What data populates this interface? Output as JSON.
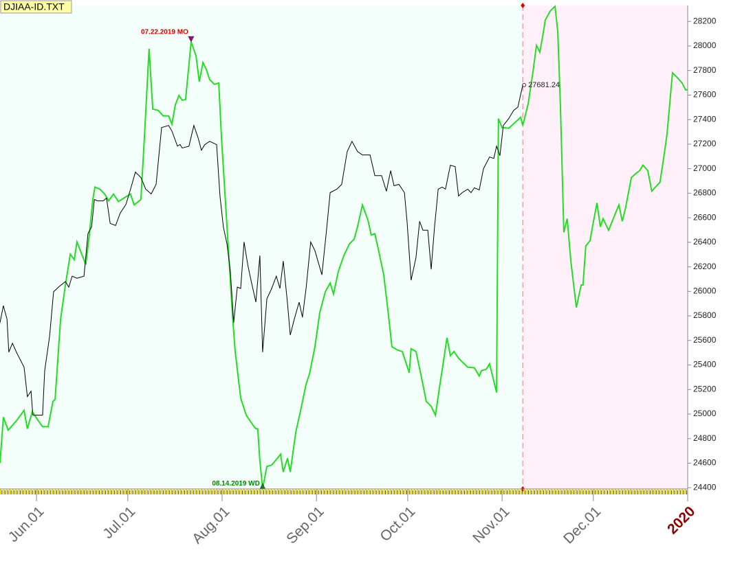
{
  "chart_data": {
    "type": "line",
    "title": "DJIAA-ID.TXT",
    "xlim": [
      0,
      226
    ],
    "ylim": [
      24390,
      28330
    ],
    "xticks": [
      {
        "value": 12,
        "label": "Jun.01"
      },
      {
        "value": 42,
        "label": "Jul.01"
      },
      {
        "value": 73,
        "label": "Aug.01"
      },
      {
        "value": 104,
        "label": "Sep.01"
      },
      {
        "value": 134,
        "label": "Oct.01"
      },
      {
        "value": 165,
        "label": "Nov.01"
      },
      {
        "value": 195,
        "label": "Dec.01"
      },
      {
        "value": 226,
        "label": "2020"
      }
    ],
    "yticks": [
      24400,
      24600,
      24800,
      25000,
      25200,
      25400,
      25600,
      25800,
      26000,
      26200,
      26400,
      26600,
      26800,
      27000,
      27200,
      27400,
      27600,
      27800,
      28000,
      28200
    ],
    "series": [
      {
        "color": "#000000",
        "x": [
          0,
          1.1,
          2.3,
          2.9,
          4.1,
          5.6,
          7.9,
          9,
          10.2,
          10.8,
          12.4,
          14,
          14.7,
          16.3,
          17.6,
          19.2,
          21.5,
          22.6,
          23.7,
          25.3,
          27.6,
          28.9,
          30.1,
          31,
          32.1,
          33.9,
          35,
          36.2,
          38,
          39.5,
          41.4,
          42.9,
          44.5,
          46.3,
          47.9,
          49.7,
          51.3,
          53.1,
          55.4,
          56.5,
          58.3,
          59.2,
          59.9,
          62.1,
          63.7,
          65.1,
          66.2,
          67.3,
          68.9,
          71.2,
          72.3,
          73.4,
          74.6,
          75.7,
          76.8,
          78,
          79.1,
          80.2,
          81.4,
          82.5,
          84.1,
          85.4,
          86.3,
          87.7,
          89.3,
          90.8,
          92,
          93.1,
          94.5,
          95.4,
          96.7,
          98.3,
          99.4,
          100.6,
          102.1,
          103.5,
          105.8,
          107.3,
          108.5,
          110.7,
          112.3,
          114.1,
          115.7,
          117.5,
          119.1,
          121.6,
          123.2,
          125.4,
          127,
          128.4,
          129.5,
          131.1,
          132.9,
          133.8,
          135.1,
          136.7,
          137.9,
          139,
          140.6,
          141.7,
          142.8,
          144,
          145.3,
          146.4,
          148,
          149.6,
          150.7,
          151.9,
          153.7,
          154.8,
          155.9,
          157.5,
          158.9,
          160.9,
          162.3,
          163.2,
          164.3,
          165.4,
          167.2,
          168.8,
          170.2,
          171.8
        ],
        "values": [
          25745,
          25884,
          25773,
          25505,
          25577,
          25494,
          25382,
          25142,
          25187,
          24991,
          24991,
          24991,
          25354,
          25633,
          25996,
          26035,
          26080,
          26035,
          26124,
          26107,
          26124,
          26470,
          26526,
          26749,
          26738,
          26738,
          26760,
          26554,
          26537,
          26638,
          26710,
          26833,
          26972,
          26928,
          26833,
          26794,
          26872,
          27335,
          27352,
          27307,
          27184,
          27196,
          27168,
          27184,
          27352,
          27251,
          27151,
          27196,
          27223,
          27196,
          26777,
          26526,
          26386,
          26163,
          25745,
          26035,
          26024,
          26403,
          26219,
          26091,
          25912,
          26292,
          25505,
          25940,
          26024,
          26124,
          26024,
          26247,
          25901,
          25644,
          25773,
          25912,
          25789,
          26024,
          26403,
          26331,
          26135,
          26498,
          26805,
          26833,
          26872,
          27140,
          27223,
          27140,
          27112,
          27112,
          26944,
          26944,
          26816,
          26984,
          26861,
          26872,
          26805,
          26565,
          26091,
          26275,
          26571,
          26498,
          26498,
          26180,
          26526,
          26833,
          26850,
          26833,
          27028,
          27017,
          26777,
          26805,
          26833,
          26805,
          26844,
          26827,
          27000,
          27095,
          27084,
          27184,
          27106,
          27352,
          27408,
          27475,
          27502,
          27681.24
        ]
      },
      {
        "color": "#22dd22",
        "x": [
          0,
          1.1,
          2.7,
          5.6,
          7.9,
          9,
          10.6,
          12.4,
          14,
          15.8,
          17.4,
          18.1,
          19.9,
          21.5,
          23.1,
          24.4,
          25.3,
          26.7,
          28.2,
          29.4,
          30.5,
          31.2,
          32.8,
          34.4,
          35.7,
          37.3,
          38.9,
          40.7,
          42.9,
          44.1,
          46.3,
          47.5,
          49,
          50.2,
          52,
          53.6,
          55.4,
          56.5,
          57.6,
          58.8,
          59.9,
          61,
          62.8,
          64.4,
          65.5,
          66.7,
          67.8,
          68.9,
          70.5,
          71.9,
          72.8,
          74.6,
          76.4,
          77.3,
          79.1,
          80.9,
          83.2,
          84.1,
          84.7,
          85.4,
          86.3,
          87.7,
          89.3,
          90.8,
          92.2,
          93.1,
          94.5,
          95.4,
          97.2,
          98.8,
          100.6,
          101.7,
          103.5,
          105.1,
          106.9,
          108.5,
          109.6,
          111.2,
          113,
          114.8,
          116.4,
          117.5,
          119.1,
          120.9,
          122,
          123.2,
          124.3,
          126.1,
          127.7,
          128.8,
          130.6,
          132.2,
          134.5,
          135.1,
          136.7,
          138.3,
          140.1,
          141.7,
          143.1,
          144.6,
          145.8,
          146.9,
          148,
          149.2,
          150.7,
          153.7,
          155.9,
          157.5,
          158.2,
          159.8,
          160.9,
          163.2,
          163.8,
          165,
          167.2,
          169.9,
          171.1,
          171.8,
          173.6,
          175.1,
          176.3,
          177.4,
          178.5,
          179.2,
          180.8,
          182.4,
          183.3,
          184.2,
          185.3,
          186.4,
          187.6,
          189.4,
          191,
          191.6,
          192.5,
          193.9,
          194.8,
          196.2,
          197.3,
          198.2,
          200,
          202.3,
          203.4,
          204.5,
          205.6,
          207.5,
          209,
          210.2,
          211.3,
          212.9,
          214.2,
          215.8,
          216.9,
          218.1,
          219.2,
          221,
          222.6,
          224.2,
          225.3,
          226
        ],
        "values": [
          24601,
          24975,
          24869,
          24952,
          25031,
          24880,
          25019,
          24952,
          24897,
          24897,
          25103,
          25120,
          25773,
          26052,
          26303,
          26258,
          26403,
          26314,
          26219,
          26470,
          26749,
          26850,
          26833,
          26794,
          26738,
          26794,
          26732,
          26760,
          26794,
          26705,
          26749,
          27279,
          27977,
          27486,
          27475,
          27430,
          27430,
          27363,
          27519,
          27597,
          27558,
          27564,
          28033,
          27921,
          27709,
          27865,
          27809,
          27726,
          27687,
          27698,
          27251,
          26526,
          25801,
          25510,
          25131,
          24991,
          24908,
          24880,
          24880,
          24618,
          24394,
          24573,
          24584,
          24629,
          24673,
          24528,
          24640,
          24528,
          24852,
          25031,
          25243,
          25326,
          25549,
          25828,
          25996,
          26068,
          25979,
          26163,
          26292,
          26386,
          26426,
          26526,
          26705,
          26582,
          26459,
          26470,
          26347,
          26135,
          25801,
          25549,
          25522,
          25510,
          25337,
          25533,
          25510,
          25326,
          25103,
          25064,
          24991,
          25243,
          25438,
          25622,
          25477,
          25510,
          25455,
          25382,
          25377,
          25310,
          25354,
          25365,
          25410,
          25176,
          27408,
          27335,
          27330,
          27391,
          27419,
          27352,
          27530,
          27781,
          28005,
          27949,
          28100,
          28211,
          28284,
          28323,
          28116,
          27502,
          26481,
          26593,
          26247,
          25868,
          26052,
          26052,
          26370,
          26414,
          26537,
          26721,
          26526,
          26593,
          26498,
          26638,
          26705,
          26571,
          26682,
          26928,
          26961,
          26984,
          27028,
          26984,
          26816,
          26861,
          26889,
          27084,
          27279,
          27781,
          27742,
          27698,
          27642,
          27642
        ]
      }
    ],
    "value_label": {
      "x": 171.8,
      "value": 27681.24
    },
    "annotations": [
      {
        "text": "07.22.2019 MO",
        "x": 62.8,
        "y": 28033,
        "color": "#dd0000"
      },
      {
        "text": "08.14.2019 WD",
        "x": 86.3,
        "y": 24394,
        "color": "#008800"
      }
    ],
    "history_color": "#f4fffc",
    "projection_color": "#fff0fa",
    "highlight_tick": "2020"
  }
}
